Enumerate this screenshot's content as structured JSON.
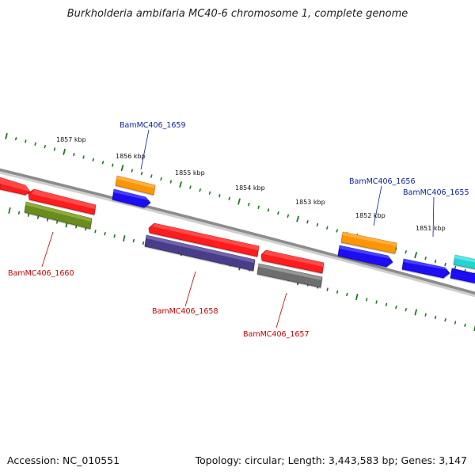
{
  "title": "Burkholderia ambifaria MC40-6 chromosome 1, complete genome",
  "footer": {
    "accession": "Accession: NC_010551",
    "topology": "Topology: circular; Length: 3,443,583 bp; Genes: 3,147"
  },
  "colors": {
    "backbone": "#8c8c8c",
    "tick": "#1e7a1e",
    "label_top": "#0a1f9e",
    "label_bottom": "#c40000",
    "red": "#ff1a1a",
    "orange": "#ff9500",
    "blue": "#1a0ff5",
    "olive": "#6b8c1c",
    "purple": "#4a3d8a",
    "gray": "#6e6e6e",
    "cyan": "#22d4d4"
  },
  "kbp_labels": [
    "1857 kbp",
    "1856 kbp",
    "1855 kbp",
    "1854 kbp",
    "1853 kbp",
    "1852 kbp",
    "1851 kbp"
  ],
  "gene_labels": {
    "g1659": "BamMC406_1659",
    "g1656": "BamMC406_1656",
    "g1655": "BamMC406_1655",
    "g1660": "BamMC406_1660",
    "g1658": "BamMC406_1658",
    "g1657": "BamMC406_1657"
  }
}
